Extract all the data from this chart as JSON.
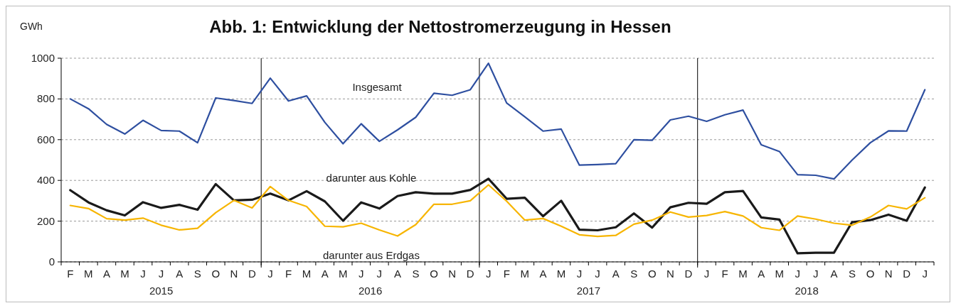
{
  "chart_data": {
    "type": "line",
    "title": "Abb. 1: Entwicklung der Nettostromerzeugung in Hessen",
    "ylabel": "GWh",
    "categories": [
      "F",
      "M",
      "A",
      "M",
      "J",
      "J",
      "A",
      "S",
      "O",
      "N",
      "D",
      "J",
      "F",
      "M",
      "A",
      "M",
      "J",
      "J",
      "A",
      "S",
      "O",
      "N",
      "D",
      "J",
      "F",
      "M",
      "A",
      "M",
      "J",
      "J",
      "A",
      "S",
      "O",
      "N",
      "D",
      "J",
      "F",
      "M",
      "A",
      "M",
      "J",
      "J",
      "A",
      "S",
      "O",
      "N",
      "D",
      "J"
    ],
    "series": [
      {
        "name": "Insgesamt",
        "color": "#2e4fa0",
        "values": [
          800,
          752,
          675,
          628,
          695,
          645,
          642,
          585,
          805,
          792,
          778,
          902,
          790,
          815,
          685,
          580,
          678,
          592,
          648,
          710,
          828,
          818,
          845,
          975,
          780,
          712,
          642,
          652,
          475,
          478,
          482,
          600,
          597,
          697,
          715,
          690,
          722,
          745,
          575,
          542,
          428,
          425,
          407,
          500,
          585,
          643,
          642,
          845
        ]
      },
      {
        "name": "darunter aus Kohle",
        "color": "#1a1a1a",
        "values": [
          352,
          292,
          253,
          228,
          293,
          265,
          280,
          256,
          382,
          302,
          305,
          335,
          302,
          347,
          297,
          202,
          292,
          262,
          323,
          342,
          335,
          335,
          353,
          408,
          310,
          315,
          224,
          300,
          158,
          155,
          170,
          238,
          168,
          268,
          290,
          285,
          342,
          348,
          218,
          208,
          42,
          45,
          45,
          195,
          205,
          232,
          202,
          365
        ]
      },
      {
        "name": "darunter aus Erdgas",
        "color": "#f7b500",
        "values": [
          277,
          262,
          212,
          205,
          215,
          180,
          157,
          165,
          242,
          302,
          265,
          370,
          302,
          272,
          175,
          172,
          190,
          157,
          127,
          183,
          283,
          283,
          300,
          378,
          298,
          205,
          213,
          175,
          133,
          125,
          130,
          185,
          205,
          245,
          220,
          228,
          247,
          225,
          168,
          155,
          225,
          210,
          190,
          180,
          220,
          277,
          260,
          315
        ]
      }
    ],
    "ylim": [
      0,
      1000
    ],
    "yticks": [
      0,
      200,
      400,
      600,
      800,
      1000
    ],
    "grid": "y",
    "annotations": [
      "2015",
      "2016",
      "2017",
      "2018"
    ],
    "legend": false,
    "marker": "none",
    "line_style": "solid"
  }
}
